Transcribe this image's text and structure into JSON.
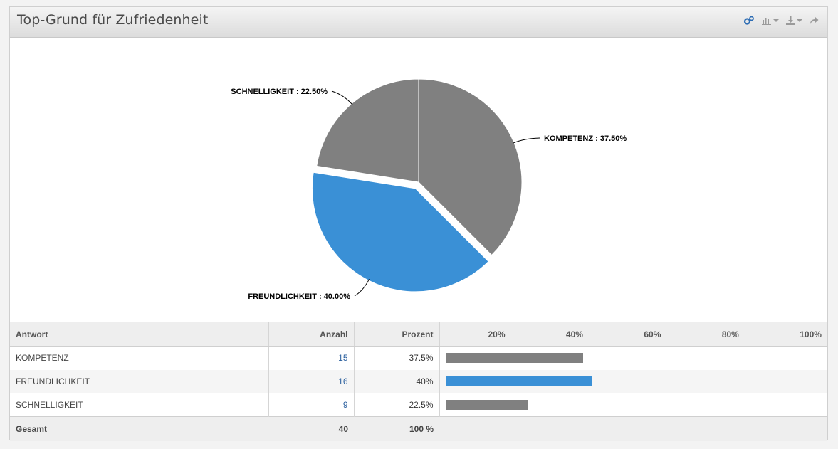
{
  "header": {
    "title": "Top-Grund für Zufriedenheit",
    "icons": [
      "settings-cogs-icon",
      "chart-type-icon",
      "download-icon",
      "share-icon"
    ]
  },
  "colors": {
    "gray": "#808080",
    "blue": "#3a90d6",
    "link": "#2a5f9e"
  },
  "chart_data": {
    "type": "pie",
    "slices": [
      {
        "label": "KOMPETENZ",
        "value": 37.5,
        "display": "KOMPETENZ : 37.50%",
        "color": "#808080"
      },
      {
        "label": "FREUNDLICHKEIT",
        "value": 40.0,
        "display": "FREUNDLICHKEIT : 40.00%",
        "color": "#3a90d6",
        "exploded": true
      },
      {
        "label": "SCHNELLIGKEIT",
        "value": 22.5,
        "display": "SCHNELLIGKEIT : 22.50%",
        "color": "#808080"
      }
    ]
  },
  "table": {
    "headers": {
      "answer": "Antwort",
      "count": "Anzahl",
      "percent": "Prozent"
    },
    "ticks": [
      "20%",
      "40%",
      "60%",
      "80%",
      "100%"
    ],
    "rows": [
      {
        "answer": "KOMPETENZ",
        "count": "15",
        "percent": "37.5%",
        "value": 37.5,
        "color": "#808080"
      },
      {
        "answer": "FREUNDLICHKEIT",
        "count": "16",
        "percent": "40%",
        "value": 40,
        "color": "#3a90d6"
      },
      {
        "answer": "SCHNELLIGKEIT",
        "count": "9",
        "percent": "22.5%",
        "value": 22.5,
        "color": "#808080"
      }
    ],
    "footer": {
      "label": "Gesamt",
      "count": "40",
      "percent": "100 %"
    }
  }
}
